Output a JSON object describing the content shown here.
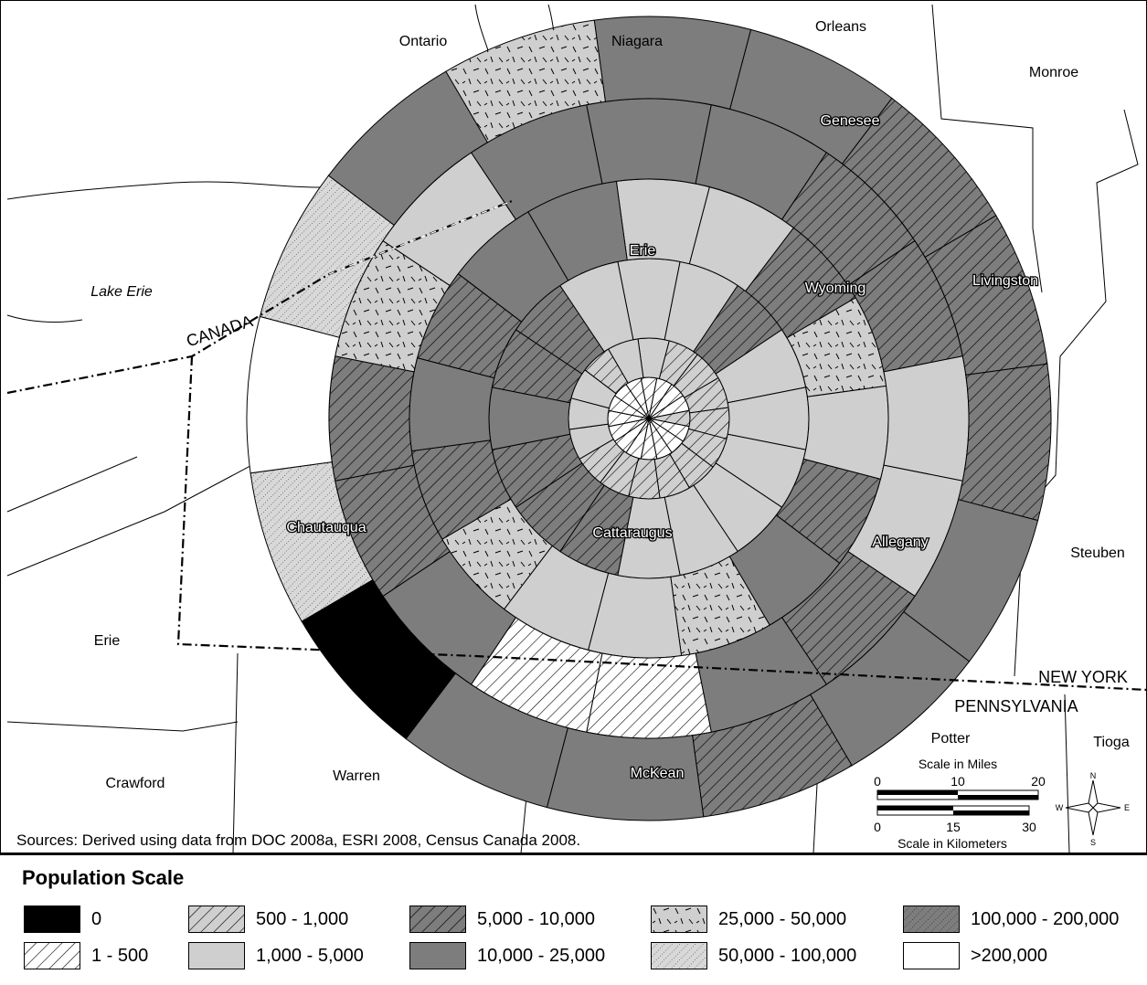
{
  "map": {
    "counties": [
      {
        "id": "ontario",
        "name": "Ontario",
        "halo": false
      },
      {
        "id": "niagara",
        "name": "Niagara",
        "halo": false
      },
      {
        "id": "orleans",
        "name": "Orleans",
        "halo": false
      },
      {
        "id": "monroe",
        "name": "Monroe",
        "halo": false
      },
      {
        "id": "genesee",
        "name": "Genesee",
        "halo": true
      },
      {
        "id": "erie-ny",
        "name": "Erie",
        "halo": true
      },
      {
        "id": "wyoming",
        "name": "Wyoming",
        "halo": true
      },
      {
        "id": "livingston",
        "name": "Livingston",
        "halo": true
      },
      {
        "id": "lake-erie",
        "name": "Lake Erie",
        "halo": false
      },
      {
        "id": "canada",
        "name": "CANADA",
        "halo": false
      },
      {
        "id": "chautauqua",
        "name": "Chautauqua",
        "halo": true
      },
      {
        "id": "cattaraugus",
        "name": "Cattaraugus",
        "halo": true
      },
      {
        "id": "allegany",
        "name": "Allegany",
        "halo": true
      },
      {
        "id": "steuben",
        "name": "Steuben",
        "halo": false
      },
      {
        "id": "erie-pa",
        "name": "Erie",
        "halo": false
      },
      {
        "id": "new-york",
        "name": "NEW YORK",
        "halo": false
      },
      {
        "id": "pennsylvania",
        "name": "PENNSYLVANIA",
        "halo": false
      },
      {
        "id": "potter",
        "name": "Potter",
        "halo": false
      },
      {
        "id": "tioga",
        "name": "Tioga",
        "halo": false
      },
      {
        "id": "crawford",
        "name": "Crawford",
        "halo": false
      },
      {
        "id": "warren",
        "name": "Warren",
        "halo": false
      },
      {
        "id": "mckean",
        "name": "McKean",
        "halo": true
      }
    ],
    "scale": {
      "miles_title": "Scale in Miles",
      "miles_ticks": [
        "0",
        "10",
        "20"
      ],
      "km_title": "Scale in Kilometers",
      "km_ticks": [
        "0",
        "15",
        "30"
      ]
    },
    "north_arrow": {
      "n": "N",
      "s": "S",
      "e": "E",
      "w": "W"
    },
    "sources": "Sources: Derived using data from DOC 2008a, ESRI 2008, Census Canada 2008."
  },
  "legend": {
    "title": "Population Scale",
    "items": [
      {
        "label": "0",
        "pattern": "solid-black"
      },
      {
        "label": "1 - 500",
        "pattern": "hatch-white"
      },
      {
        "label": "500 - 1,000",
        "pattern": "hatch-light"
      },
      {
        "label": "1,000 - 5,000",
        "pattern": "solid-light"
      },
      {
        "label": "5,000 - 10,000",
        "pattern": "hatch-dark"
      },
      {
        "label": "10,000 - 25,000",
        "pattern": "solid-dark"
      },
      {
        "label": "25,000 - 50,000",
        "pattern": "dashes"
      },
      {
        "label": "50,000 - 100,000",
        "pattern": "dots"
      },
      {
        "label": "100,000 - 200,000",
        "pattern": "dark-dots"
      },
      {
        "label": ">200,000",
        "pattern": "white"
      }
    ]
  },
  "colors": {
    "dark": "#7d7d7d",
    "light": "#cfcfcf",
    "black": "#000000",
    "white": "#ffffff"
  },
  "grid_values": {
    "ring_1": [
      "1 - 500",
      "1 - 500",
      "1 - 500",
      "1 - 500",
      "500 - 1,000",
      "1 - 500",
      "1 - 500",
      "1 - 500",
      "1 - 500",
      "1 - 500",
      "1 - 500",
      "1 - 500",
      "1 - 500",
      "1 - 500",
      "1 - 500",
      "1 - 500"
    ],
    "ring_2": [
      "1,000 - 5,000",
      "500 - 1,000",
      "500 - 1,000",
      "500 - 1,000",
      "500 - 1,000",
      "500 - 1,000",
      "500 - 1,000",
      "500 - 1,000",
      "500 - 1,000",
      "500 - 1,000",
      "500 - 1,000",
      "1,000 - 5,000",
      "1,000 - 5,000",
      "1,000 - 5,000",
      "500 - 1,000",
      "1,000 - 5,000"
    ],
    "ring_3": [
      "1,000 - 5,000",
      "1,000 - 5,000",
      "5,000 - 10,000",
      "1,000 - 5,000",
      "1,000 - 5,000",
      "1,000 - 5,000",
      "1,000 - 5,000",
      "1,000 - 5,000",
      "1,000 - 5,000",
      "5,000 - 10,000",
      "5,000 - 10,000",
      "5,000 - 10,000",
      "10,000 - 25,000",
      "5,000 - 10,000",
      "5,000 - 10,000",
      "1,000 - 5,000"
    ],
    "ring_4": [
      "1,000 - 5,000",
      "1,000 - 5,000",
      "5,000 - 10,000",
      "25,000 - 50,000",
      "1,000 - 5,000",
      "5,000 - 10,000",
      "10,000 - 25,000",
      "25,000 - 50,000",
      "1,000 - 5,000",
      "1,000 - 5,000",
      "25,000 - 50,000",
      "5,000 - 10,000",
      "10,000 - 25,000",
      "5,000 - 10,000",
      "10,000 - 25,000",
      "10,000 - 25,000"
    ],
    "ring_5": [
      "10,000 - 25,000",
      "10,000 - 25,000",
      "5,000 - 10,000",
      "5,000 - 10,000",
      "1,000 - 5,000",
      "1,000 - 5,000",
      "5,000 - 10,000",
      "10,000 - 25,000",
      "1 - 500",
      "1 - 500",
      "10,000 - 25,000",
      "5,000 - 10,000",
      "5,000 - 10,000",
      "25,000 - 50,000",
      "1,000 - 5,000",
      "10,000 - 25,000"
    ],
    "ring_6": [
      "10,000 - 25,000",
      "10,000 - 25,000",
      "5,000 - 10,000",
      "5,000 - 10,000",
      "5,000 - 10,000",
      "10,000 - 25,000",
      "10,000 - 25,000",
      "5,000 - 10,000",
      "10,000 - 25,000",
      "10,000 - 25,000",
      "0",
      "50,000 - 100,000",
      ">200,000",
      "50,000 - 100,000",
      "10,000 - 25,000",
      "25,000 - 50,000"
    ]
  }
}
